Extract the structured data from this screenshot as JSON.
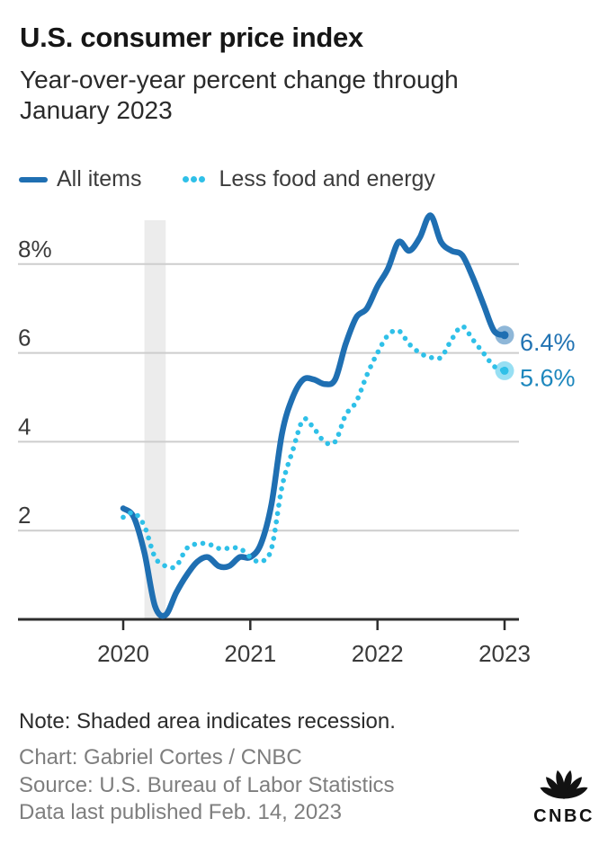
{
  "header": {
    "title": "U.S. consumer price index",
    "subtitle_line1": "Year-over-year percent change through",
    "subtitle_line2": "January 2023"
  },
  "legend": {
    "items": [
      {
        "label": "All items",
        "style": "solid",
        "color": "#1f6fb2"
      },
      {
        "label": "Less food and energy",
        "style": "dotted",
        "color": "#2fc0e8"
      }
    ]
  },
  "chart_data": {
    "type": "line",
    "title": "U.S. consumer price index",
    "subtitle": "Year-over-year percent change through January 2023",
    "xlabel": "",
    "ylabel": "Year-over-year percent change",
    "x_unit": "month",
    "categories": [
      "2020-01",
      "2020-02",
      "2020-03",
      "2020-04",
      "2020-05",
      "2020-06",
      "2020-07",
      "2020-08",
      "2020-09",
      "2020-10",
      "2020-11",
      "2020-12",
      "2021-01",
      "2021-02",
      "2021-03",
      "2021-04",
      "2021-05",
      "2021-06",
      "2021-07",
      "2021-08",
      "2021-09",
      "2021-10",
      "2021-11",
      "2021-12",
      "2022-01",
      "2022-02",
      "2022-03",
      "2022-04",
      "2022-05",
      "2022-06",
      "2022-07",
      "2022-08",
      "2022-09",
      "2022-10",
      "2022-11",
      "2022-12",
      "2023-01"
    ],
    "series": [
      {
        "name": "All items",
        "style": "solid",
        "color": "#1f6fb2",
        "label_color": "#2173b3",
        "end_label": "6.4%",
        "values": [
          2.5,
          2.3,
          1.5,
          0.3,
          0.1,
          0.6,
          1.0,
          1.3,
          1.4,
          1.2,
          1.2,
          1.4,
          1.4,
          1.7,
          2.6,
          4.2,
          5.0,
          5.4,
          5.4,
          5.3,
          5.4,
          6.2,
          6.8,
          7.0,
          7.5,
          7.9,
          8.5,
          8.3,
          8.6,
          9.1,
          8.5,
          8.3,
          8.2,
          7.7,
          7.1,
          6.5,
          6.4
        ]
      },
      {
        "name": "Less food and energy",
        "style": "dotted",
        "color": "#2fc0e8",
        "label_color": "#1d87bd",
        "end_label": "5.6%",
        "values": [
          2.3,
          2.4,
          2.1,
          1.4,
          1.2,
          1.2,
          1.6,
          1.7,
          1.7,
          1.6,
          1.6,
          1.6,
          1.4,
          1.3,
          1.6,
          3.0,
          3.8,
          4.5,
          4.3,
          4.0,
          4.0,
          4.6,
          4.9,
          5.5,
          6.0,
          6.4,
          6.5,
          6.2,
          6.0,
          5.9,
          5.9,
          6.3,
          6.6,
          6.3,
          6.0,
          5.7,
          5.6
        ]
      }
    ],
    "ylim": [
      0,
      9.3
    ],
    "yticks": [
      {
        "value": 8,
        "label": "8%"
      },
      {
        "value": 6,
        "label": "6"
      },
      {
        "value": 4,
        "label": "4"
      },
      {
        "value": 2,
        "label": "2"
      }
    ],
    "xticks": [
      {
        "index": 0,
        "label": "2020"
      },
      {
        "index": 12,
        "label": "2021"
      },
      {
        "index": 24,
        "label": "2022"
      },
      {
        "index": 36,
        "label": "2023"
      }
    ],
    "recession_band": {
      "from": "2020-03",
      "to": "2020-05",
      "color": "#ececec"
    },
    "grid": "horizontal",
    "grid_color": "#cdcdcd",
    "axis_color": "#2d2d2d",
    "tick_label_color": "#3a3a3a",
    "legend_position": "top"
  },
  "footer": {
    "note": "Note: Shaded area indicates recession.",
    "credit": "Chart: Gabriel Cortes / CNBC",
    "source": "Source: U.S. Bureau of Labor Statistics",
    "published": "Data last published Feb. 14, 2023",
    "logo_text": "CNBC"
  }
}
